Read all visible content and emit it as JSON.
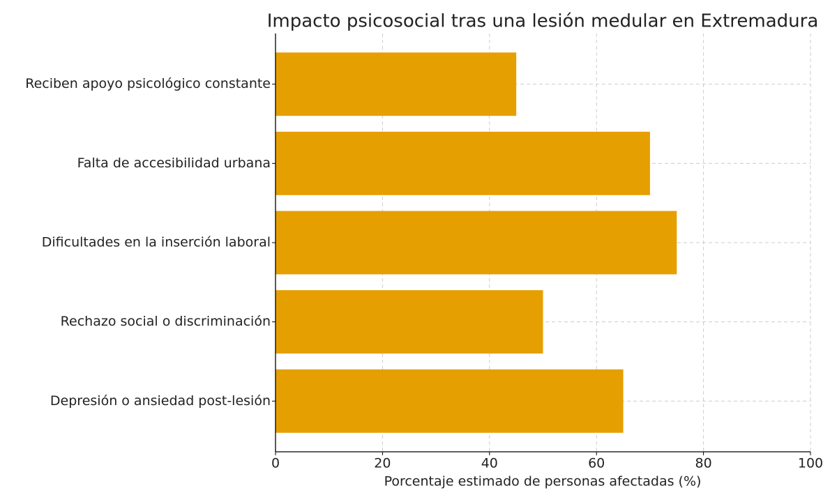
{
  "chart_data": {
    "type": "barh",
    "title": "Impacto psicosocial tras una lesión medular en Extremadura",
    "x_label": "Porcentaje estimado de personas afectadas (%)",
    "categories": [
      "Depresión o ansiedad post-lesión",
      "Rechazo social o discriminación",
      "Dificultades en la inserción laboral",
      "Falta de accesibilidad urbana",
      "Reciben apoyo psicológico constante"
    ],
    "values": [
      65,
      50,
      75,
      70,
      45
    ],
    "color": "#e69f00",
    "xlim": [
      0,
      100
    ],
    "xticks": [
      0,
      20,
      40,
      60,
      80,
      100
    ],
    "grid": true
  }
}
